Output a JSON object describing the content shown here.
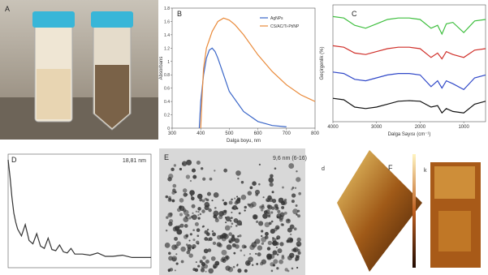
{
  "panels": {
    "a": "A",
    "e": "E",
    "e_note": "9,6 nm (6-16)",
    "f_small": "d",
    "f": "F",
    "k": "k"
  },
  "chart_data": [
    {
      "type": "line",
      "title": "B",
      "xlabel": "Dalga boyu, nm",
      "ylabel": "Absorbans",
      "xlim": [
        300,
        800
      ],
      "xticks": [
        300,
        400,
        500,
        600,
        700,
        800
      ],
      "ylim": [
        0,
        1.8
      ],
      "yticks": [
        0,
        0.2,
        0.4,
        0.6,
        0.8,
        1,
        1.2,
        1.4,
        1.6,
        1.8
      ],
      "series": [
        {
          "name": "AgNPs",
          "color": "#3a66c8",
          "x": [
            395,
            400,
            410,
            420,
            430,
            440,
            450,
            460,
            480,
            500,
            550,
            600,
            650,
            700
          ],
          "values": [
            0,
            0.4,
            0.8,
            1.05,
            1.17,
            1.2,
            1.15,
            1.05,
            0.8,
            0.55,
            0.25,
            0.1,
            0.04,
            0.02
          ]
        },
        {
          "name": "CS/AC/Ti-Pt/NP",
          "color": "#e98a3a",
          "x": [
            400,
            405,
            410,
            420,
            440,
            460,
            480,
            500,
            520,
            550,
            600,
            650,
            700,
            750,
            800
          ],
          "values": [
            0,
            0.5,
            0.9,
            1.2,
            1.45,
            1.6,
            1.65,
            1.62,
            1.55,
            1.4,
            1.1,
            0.85,
            0.65,
            0.5,
            0.4
          ]
        }
      ]
    },
    {
      "type": "line",
      "title": "C",
      "xlabel": "Dalga Sayısı (cm⁻¹)",
      "ylabel": "Geçirgenlik (%)",
      "xlim": [
        4000,
        500
      ],
      "xticks": [
        4000,
        3000,
        2000,
        1000
      ],
      "ylim": [
        0,
        4
      ],
      "x": [
        4000,
        3750,
        3500,
        3250,
        3000,
        2750,
        2500,
        2250,
        2000,
        1750,
        1600,
        1500,
        1400,
        1250,
        1000,
        750,
        500
      ],
      "series": [
        {
          "name": "",
          "color": "#3fbf3f",
          "values": [
            3.6,
            3.55,
            3.3,
            3.2,
            3.35,
            3.5,
            3.55,
            3.55,
            3.5,
            3.2,
            3.3,
            3.0,
            3.35,
            3.4,
            3.05,
            3.45,
            3.5
          ]
        },
        {
          "name": "",
          "color": "#d0302a",
          "values": [
            2.6,
            2.55,
            2.35,
            2.3,
            2.4,
            2.5,
            2.55,
            2.55,
            2.5,
            2.2,
            2.35,
            2.15,
            2.4,
            2.3,
            2.2,
            2.45,
            2.5
          ]
        },
        {
          "name": "",
          "color": "#3048c8",
          "values": [
            1.7,
            1.65,
            1.45,
            1.4,
            1.5,
            1.6,
            1.65,
            1.65,
            1.6,
            1.2,
            1.4,
            1.15,
            1.4,
            1.3,
            1.1,
            1.5,
            1.6
          ]
        },
        {
          "name": "",
          "color": "#111111",
          "values": [
            0.8,
            0.75,
            0.5,
            0.45,
            0.5,
            0.6,
            0.7,
            0.72,
            0.7,
            0.5,
            0.55,
            0.3,
            0.45,
            0.35,
            0.3,
            0.6,
            0.7
          ]
        }
      ]
    },
    {
      "type": "line",
      "title": "D",
      "annotation": "18,81 nm",
      "xlim": [
        5,
        80
      ],
      "ylim": [
        0,
        100
      ],
      "series": [
        {
          "name": "",
          "color": "#333333",
          "x": [
            5,
            6,
            7,
            8,
            9,
            10,
            12,
            14,
            16,
            18,
            20,
            22,
            24,
            26,
            28,
            30,
            32,
            34,
            36,
            38,
            40,
            44,
            48,
            52,
            56,
            60,
            65,
            70,
            75,
            80
          ],
          "values": [
            95,
            80,
            62,
            48,
            40,
            34,
            28,
            38,
            24,
            21,
            30,
            19,
            17,
            26,
            16,
            15,
            20,
            14,
            13,
            17,
            12,
            12,
            11,
            13,
            10,
            10,
            11,
            9,
            9,
            9
          ]
        }
      ]
    }
  ]
}
